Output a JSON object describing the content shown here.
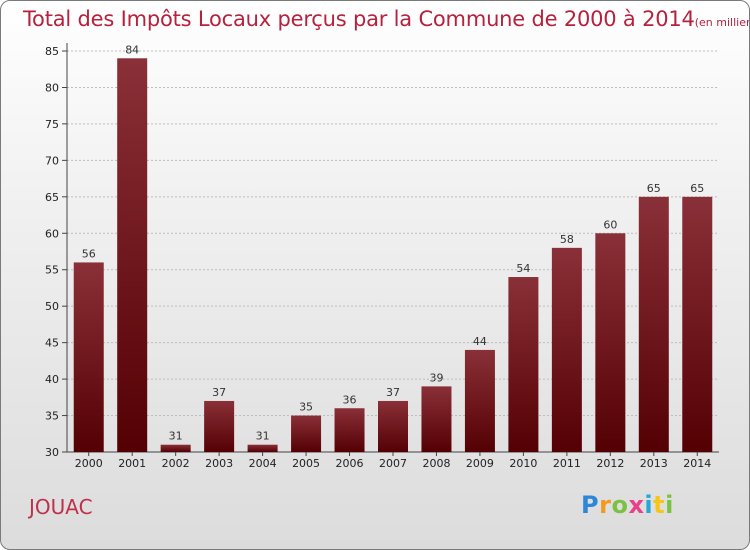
{
  "title": "Total des Impôts Locaux perçus par la Commune de 2000 à 2014",
  "title_unit": "(en milliers d'€)",
  "commune": "JOUAC",
  "brand": [
    "P",
    "r",
    "o",
    "x",
    "i",
    "t",
    "i"
  ],
  "colors": {
    "title": "#b6223d",
    "bar_top": "#8a3038",
    "bar_bottom": "#540003",
    "grid": "#bdbdbd"
  },
  "chart_data": {
    "type": "bar",
    "title": "Total des Impôts Locaux perçus par la Commune de 2000 à 2014",
    "xlabel": "",
    "ylabel": "",
    "categories": [
      "2000",
      "2001",
      "2002",
      "2003",
      "2004",
      "2005",
      "2006",
      "2007",
      "2008",
      "2009",
      "2010",
      "2011",
      "2012",
      "2013",
      "2014"
    ],
    "values": [
      56,
      84,
      31,
      37,
      31,
      35,
      36,
      37,
      39,
      44,
      54,
      58,
      60,
      65,
      65
    ],
    "ylim": [
      30,
      85
    ],
    "yticks": [
      30,
      35,
      40,
      45,
      50,
      55,
      60,
      65,
      70,
      75,
      80,
      85
    ],
    "grid": true
  }
}
